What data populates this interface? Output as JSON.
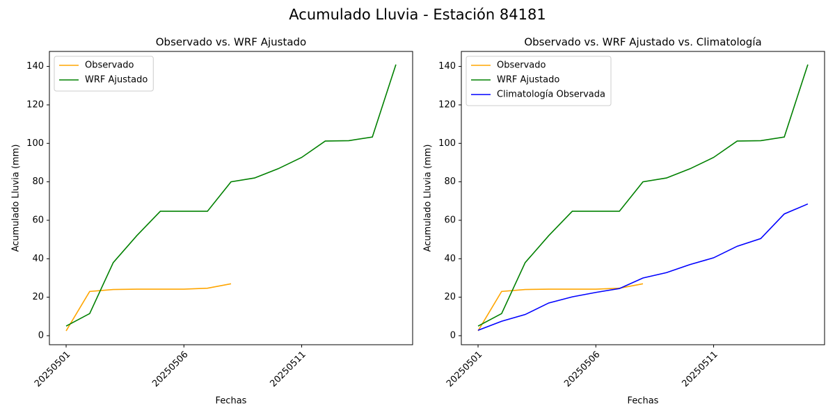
{
  "title": "Acumulado Lluvia - Estación 84181",
  "chart_data": [
    {
      "type": "line",
      "title": "Observado vs. WRF Ajustado",
      "x_label": "Fechas",
      "y_label": "Acumulado Lluvia (mm)",
      "categories": [
        "20250501",
        null,
        null,
        null,
        null,
        "20250506",
        null,
        null,
        null,
        null,
        "20250511",
        null,
        null,
        null,
        null
      ],
      "series": [
        {
          "name": "Observado",
          "color": "orange",
          "values": [
            2.5,
            23,
            24,
            24.2,
            24.2,
            24.2,
            24.7,
            27,
            null,
            null,
            null,
            null,
            null,
            null,
            null
          ]
        },
        {
          "name": "WRF Ajustado",
          "color": "green",
          "values": [
            5,
            11.5,
            38,
            52,
            64.7,
            64.7,
            64.7,
            80,
            82,
            86.8,
            92.7,
            101.2,
            101.4,
            103.3,
            141
          ]
        }
      ],
      "ylim": [
        -4.7,
        147.8
      ],
      "yticks": [
        0,
        20,
        40,
        60,
        80,
        100,
        120,
        140
      ],
      "legend": "upper left"
    },
    {
      "type": "line",
      "title": "Observado vs. WRF Ajustado vs. Climatología",
      "x_label": "Fechas",
      "y_label": "Acumulado Lluvia (mm)",
      "categories": [
        "20250501",
        null,
        null,
        null,
        null,
        "20250506",
        null,
        null,
        null,
        null,
        "20250511",
        null,
        null,
        null,
        null
      ],
      "series": [
        {
          "name": "Observado",
          "color": "orange",
          "values": [
            2.5,
            23,
            24,
            24.2,
            24.2,
            24.2,
            24.7,
            27,
            null,
            null,
            null,
            null,
            null,
            null,
            null
          ]
        },
        {
          "name": "WRF Ajustado",
          "color": "green",
          "values": [
            5,
            11.5,
            38,
            52,
            64.7,
            64.7,
            64.7,
            80,
            82,
            86.8,
            92.7,
            101.2,
            101.4,
            103.3,
            141
          ]
        },
        {
          "name": "Climatología Observada",
          "color": "blue",
          "values": [
            2.8,
            7.5,
            11,
            17,
            20.2,
            22.5,
            24.5,
            30,
            32.8,
            37,
            40.5,
            46.5,
            50.5,
            63.3,
            68.5
          ]
        }
      ],
      "ylim": [
        -4.7,
        147.8
      ],
      "yticks": [
        0,
        20,
        40,
        60,
        80,
        100,
        120,
        140
      ],
      "legend": "upper left"
    }
  ]
}
